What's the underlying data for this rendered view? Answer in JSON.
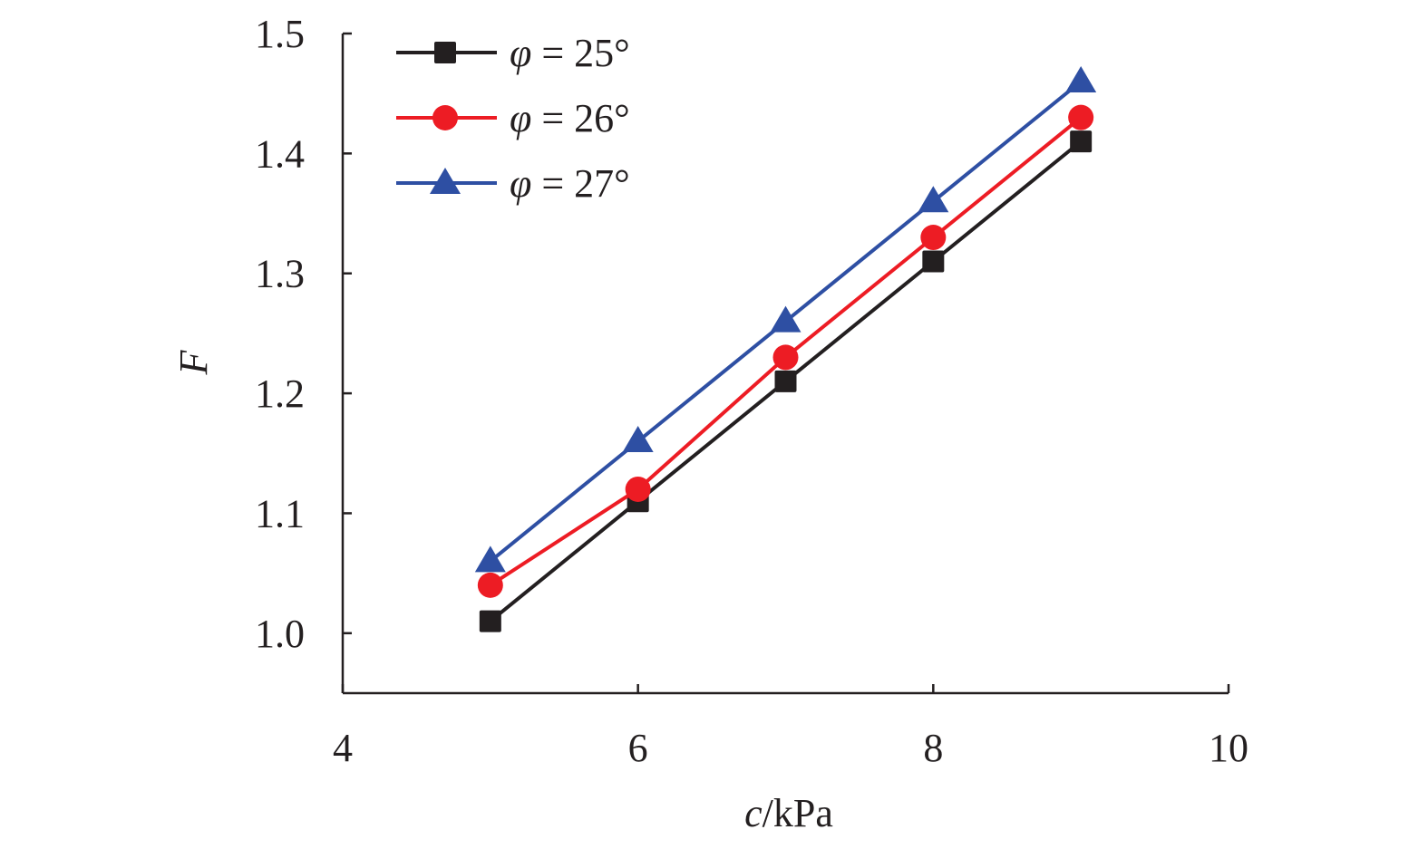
{
  "chart_data": {
    "type": "line",
    "title": "",
    "xlabel_italic": "c",
    "xlabel_rest": "/kPa",
    "ylabel": "F",
    "xlim": [
      4,
      10
    ],
    "ylim": [
      0.95,
      1.5
    ],
    "x_ticks": [
      4,
      6,
      8,
      10
    ],
    "y_ticks": [
      1.0,
      1.1,
      1.2,
      1.3,
      1.4,
      1.5
    ],
    "x_tick_labels": [
      "4",
      "6",
      "8",
      "10"
    ],
    "y_tick_labels": [
      "1.0",
      "1.1",
      "1.2",
      "1.3",
      "1.4",
      "1.5"
    ],
    "grid": false,
    "legend_position": "top-left",
    "x": [
      5,
      6,
      7,
      8,
      9
    ],
    "series": [
      {
        "name": "φ = 25°",
        "symbol": "φ",
        "label": " = 25°",
        "marker": "square",
        "color": "#231f20",
        "values": [
          1.01,
          1.11,
          1.21,
          1.31,
          1.41
        ]
      },
      {
        "name": "φ = 26°",
        "symbol": "φ",
        "label": " = 26°",
        "marker": "circle",
        "color": "#ed1c24",
        "values": [
          1.04,
          1.12,
          1.23,
          1.33,
          1.43
        ]
      },
      {
        "name": "φ = 27°",
        "symbol": "φ",
        "label": " = 27°",
        "marker": "triangle",
        "color": "#2e4fa3",
        "values": [
          1.06,
          1.16,
          1.26,
          1.36,
          1.46
        ]
      }
    ]
  }
}
